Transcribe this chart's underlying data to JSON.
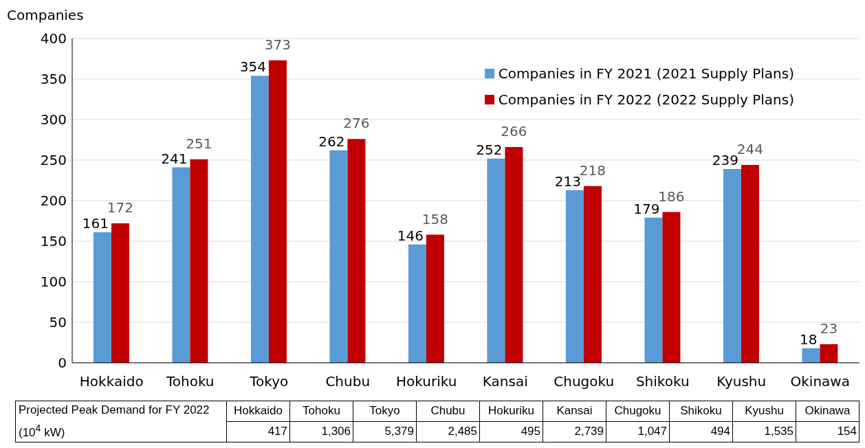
{
  "chart_data": {
    "type": "bar",
    "ylabel": "Companies",
    "categories": [
      "Hokkaido",
      "Tohoku",
      "Tokyo",
      "Chubu",
      "Hokuriku",
      "Kansai",
      "Chugoku",
      "Shikoku",
      "Kyushu",
      "Okinawa"
    ],
    "series": [
      {
        "name": "Companies in FY 2021 (2021 Supply Plans)",
        "color": "#5b9bd5",
        "values": [
          161,
          241,
          354,
          262,
          146,
          252,
          213,
          179,
          239,
          18
        ]
      },
      {
        "name": "Companies in FY 2022 (2022 Supply Plans)",
        "color": "#c00000",
        "values": [
          172,
          251,
          373,
          276,
          158,
          266,
          218,
          186,
          244,
          23
        ]
      }
    ],
    "ylim": [
      0,
      400
    ],
    "yticks": [
      0,
      50,
      100,
      150,
      200,
      250,
      300,
      350,
      400
    ],
    "grid": "y",
    "legend": "top right",
    "data_labels": true,
    "annotations": [
      "Projected Peak Demand for FY 2022 (10$^{4}$ kW)",
      "417",
      "1,306",
      "5,379",
      "2,485",
      "495",
      "2,739",
      "1,047",
      "494",
      "1,535",
      "154"
    ]
  }
}
